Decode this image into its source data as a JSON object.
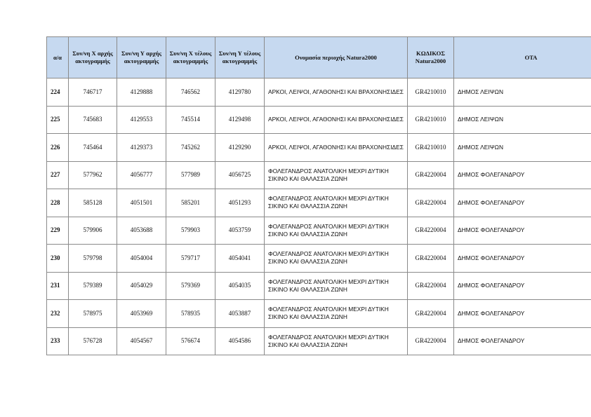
{
  "table": {
    "headers": [
      "α/α",
      "Συν/νη Χ αρχής ακτογραμμής",
      "Συν/νη Υ αρχής ακτογραμμής",
      "Συν/νη Χ τέλους ακτογραμμής",
      "Συν/νη Υ τέλους ακτογραμμής",
      "Ονομασία περιοχής Natura2000",
      "ΚΩΔΙΚΟΣ Natura2000",
      "ΟΤΑ"
    ],
    "rows": [
      [
        "224",
        "746717",
        "4129888",
        "746562",
        "4129780",
        "ΑΡΚΟΙ, ΛΕΙΨΟΙ, ΑΓΑΘΟΝΗΣΙ ΚΑΙ ΒΡΑΧΟΝΗΣΙΔΕΣ",
        "GR4210010",
        "ΔΗΜΟΣ ΛΕΙΨΩΝ"
      ],
      [
        "225",
        "745683",
        "4129553",
        "745514",
        "4129498",
        "ΑΡΚΟΙ, ΛΕΙΨΟΙ, ΑΓΑΘΟΝΗΣΙ ΚΑΙ ΒΡΑΧΟΝΗΣΙΔΕΣ",
        "GR4210010",
        "ΔΗΜΟΣ ΛΕΙΨΩΝ"
      ],
      [
        "226",
        "745464",
        "4129373",
        "745262",
        "4129290",
        "ΑΡΚΟΙ, ΛΕΙΨΟΙ, ΑΓΑΘΟΝΗΣΙ ΚΑΙ ΒΡΑΧΟΝΗΣΙΔΕΣ",
        "GR4210010",
        "ΔΗΜΟΣ ΛΕΙΨΩΝ"
      ],
      [
        "227",
        "577962",
        "4056777",
        "577989",
        "4056725",
        "ΦΟΛΕΓΑΝΔΡΟΣ ΑΝΑΤΟΛΙΚΗ ΜΕΧΡΙ ΔΥΤΙΚΗ ΣΙΚΙΝΟ ΚΑΙ ΘΑΛΑΣΣΙΑ ΖΩΝΗ",
        "GR4220004",
        "ΔΗΜΟΣ ΦΟΛΕΓΑΝΔΡΟΥ"
      ],
      [
        "228",
        "585128",
        "4051501",
        "585201",
        "4051293",
        "ΦΟΛΕΓΑΝΔΡΟΣ ΑΝΑΤΟΛΙΚΗ ΜΕΧΡΙ ΔΥΤΙΚΗ ΣΙΚΙΝΟ ΚΑΙ ΘΑΛΑΣΣΙΑ ΖΩΝΗ",
        "GR4220004",
        "ΔΗΜΟΣ ΦΟΛΕΓΑΝΔΡΟΥ"
      ],
      [
        "229",
        "579906",
        "4053688",
        "579903",
        "4053759",
        "ΦΟΛΕΓΑΝΔΡΟΣ ΑΝΑΤΟΛΙΚΗ ΜΕΧΡΙ ΔΥΤΙΚΗ ΣΙΚΙΝΟ ΚΑΙ ΘΑΛΑΣΣΙΑ ΖΩΝΗ",
        "GR4220004",
        "ΔΗΜΟΣ ΦΟΛΕΓΑΝΔΡΟΥ"
      ],
      [
        "230",
        "579798",
        "4054004",
        "579717",
        "4054041",
        "ΦΟΛΕΓΑΝΔΡΟΣ ΑΝΑΤΟΛΙΚΗ ΜΕΧΡΙ ΔΥΤΙΚΗ ΣΙΚΙΝΟ ΚΑΙ ΘΑΛΑΣΣΙΑ ΖΩΝΗ",
        "GR4220004",
        "ΔΗΜΟΣ ΦΟΛΕΓΑΝΔΡΟΥ"
      ],
      [
        "231",
        "579389",
        "4054029",
        "579369",
        "4054035",
        "ΦΟΛΕΓΑΝΔΡΟΣ ΑΝΑΤΟΛΙΚΗ ΜΕΧΡΙ ΔΥΤΙΚΗ ΣΙΚΙΝΟ ΚΑΙ ΘΑΛΑΣΣΙΑ ΖΩΝΗ",
        "GR4220004",
        "ΔΗΜΟΣ ΦΟΛΕΓΑΝΔΡΟΥ"
      ],
      [
        "232",
        "578975",
        "4053969",
        "578935",
        "4053887",
        "ΦΟΛΕΓΑΝΔΡΟΣ ΑΝΑΤΟΛΙΚΗ ΜΕΧΡΙ ΔΥΤΙΚΗ ΣΙΚΙΝΟ ΚΑΙ ΘΑΛΑΣΣΙΑ ΖΩΝΗ",
        "GR4220004",
        "ΔΗΜΟΣ ΦΟΛΕΓΑΝΔΡΟΥ"
      ],
      [
        "233",
        "576728",
        "4054567",
        "576674",
        "4054586",
        "ΦΟΛΕΓΑΝΔΡΟΣ ΑΝΑΤΟΛΙΚΗ ΜΕΧΡΙ ΔΥΤΙΚΗ ΣΙΚΙΝΟ ΚΑΙ ΘΑΛΑΣΣΙΑ ΖΩΝΗ",
        "GR4220004",
        "ΔΗΜΟΣ ΦΟΛΕΓΑΝΔΡΟΥ"
      ]
    ]
  },
  "colors": {
    "header_bg": "#c6d9f0",
    "border": "#8a8a8a"
  }
}
